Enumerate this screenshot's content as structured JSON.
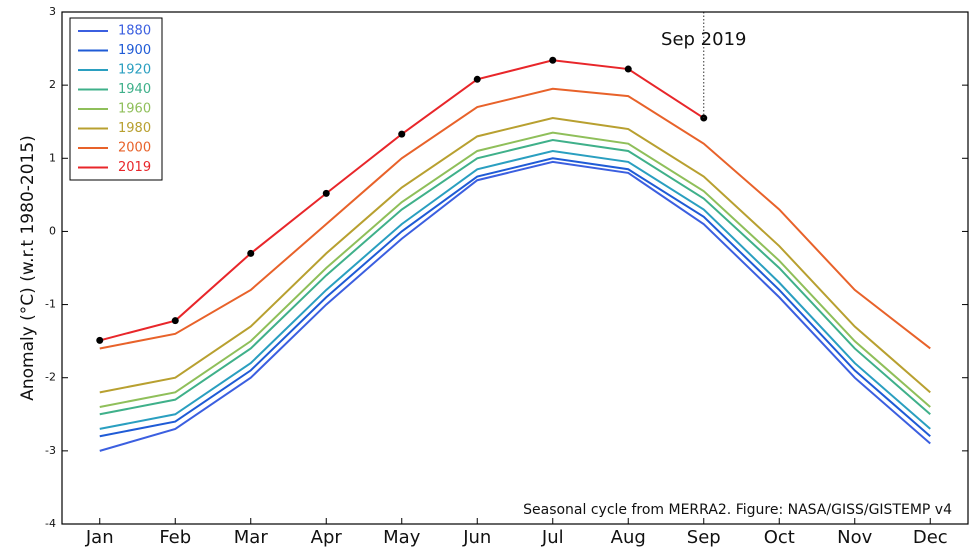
{
  "chart_data": {
    "type": "line",
    "y_label": "Anomaly (°C) (w.r.t 1980-2015)",
    "annotation": "Sep 2019",
    "footnote": "Seasonal cycle from MERRA2. Figure: NASA/GISS/GISTEMP v4",
    "categories": [
      "Jan",
      "Feb",
      "Mar",
      "Apr",
      "May",
      "Jun",
      "Jul",
      "Aug",
      "Sep",
      "Oct",
      "Nov",
      "Dec"
    ],
    "ylim": [
      -4,
      3
    ],
    "yticks": [
      -4,
      -3,
      -2,
      -1,
      0,
      1,
      2,
      3
    ],
    "legend": "upper left",
    "series": [
      {
        "name": "1880",
        "color": "#3b5fe0",
        "values": [
          -3.0,
          -2.7,
          -2.0,
          -1.0,
          -0.1,
          0.7,
          0.95,
          0.8,
          0.1,
          -0.9,
          -2.0,
          -2.9
        ]
      },
      {
        "name": "1900",
        "color": "#1f5bd6",
        "values": [
          -2.8,
          -2.6,
          -1.9,
          -0.9,
          0.0,
          0.75,
          1.0,
          0.85,
          0.2,
          -0.8,
          -1.9,
          -2.8
        ]
      },
      {
        "name": "1920",
        "color": "#2a9fc0",
        "values": [
          -2.7,
          -2.5,
          -1.8,
          -0.8,
          0.1,
          0.85,
          1.1,
          0.95,
          0.3,
          -0.7,
          -1.8,
          -2.7
        ]
      },
      {
        "name": "1940",
        "color": "#3fb08a",
        "values": [
          -2.5,
          -2.3,
          -1.6,
          -0.6,
          0.3,
          1.0,
          1.25,
          1.1,
          0.45,
          -0.5,
          -1.6,
          -2.5
        ]
      },
      {
        "name": "1960",
        "color": "#8fbf5a",
        "values": [
          -2.4,
          -2.2,
          -1.5,
          -0.5,
          0.4,
          1.1,
          1.35,
          1.2,
          0.55,
          -0.4,
          -1.5,
          -2.4
        ]
      },
      {
        "name": "1980",
        "color": "#b8a030",
        "values": [
          -2.2,
          -2.0,
          -1.3,
          -0.3,
          0.6,
          1.3,
          1.55,
          1.4,
          0.75,
          -0.2,
          -1.3,
          -2.2
        ]
      },
      {
        "name": "2000",
        "color": "#e8622a",
        "values": [
          -1.6,
          -1.4,
          -0.8,
          0.1,
          1.0,
          1.7,
          1.95,
          1.85,
          1.2,
          0.3,
          -0.8,
          -1.6
        ]
      },
      {
        "name": "2019",
        "color": "#e8262a",
        "values": [
          -1.49,
          -1.22,
          -0.3,
          0.52,
          1.33,
          2.08,
          2.34,
          2.22,
          1.55,
          null,
          null,
          null
        ]
      }
    ]
  }
}
